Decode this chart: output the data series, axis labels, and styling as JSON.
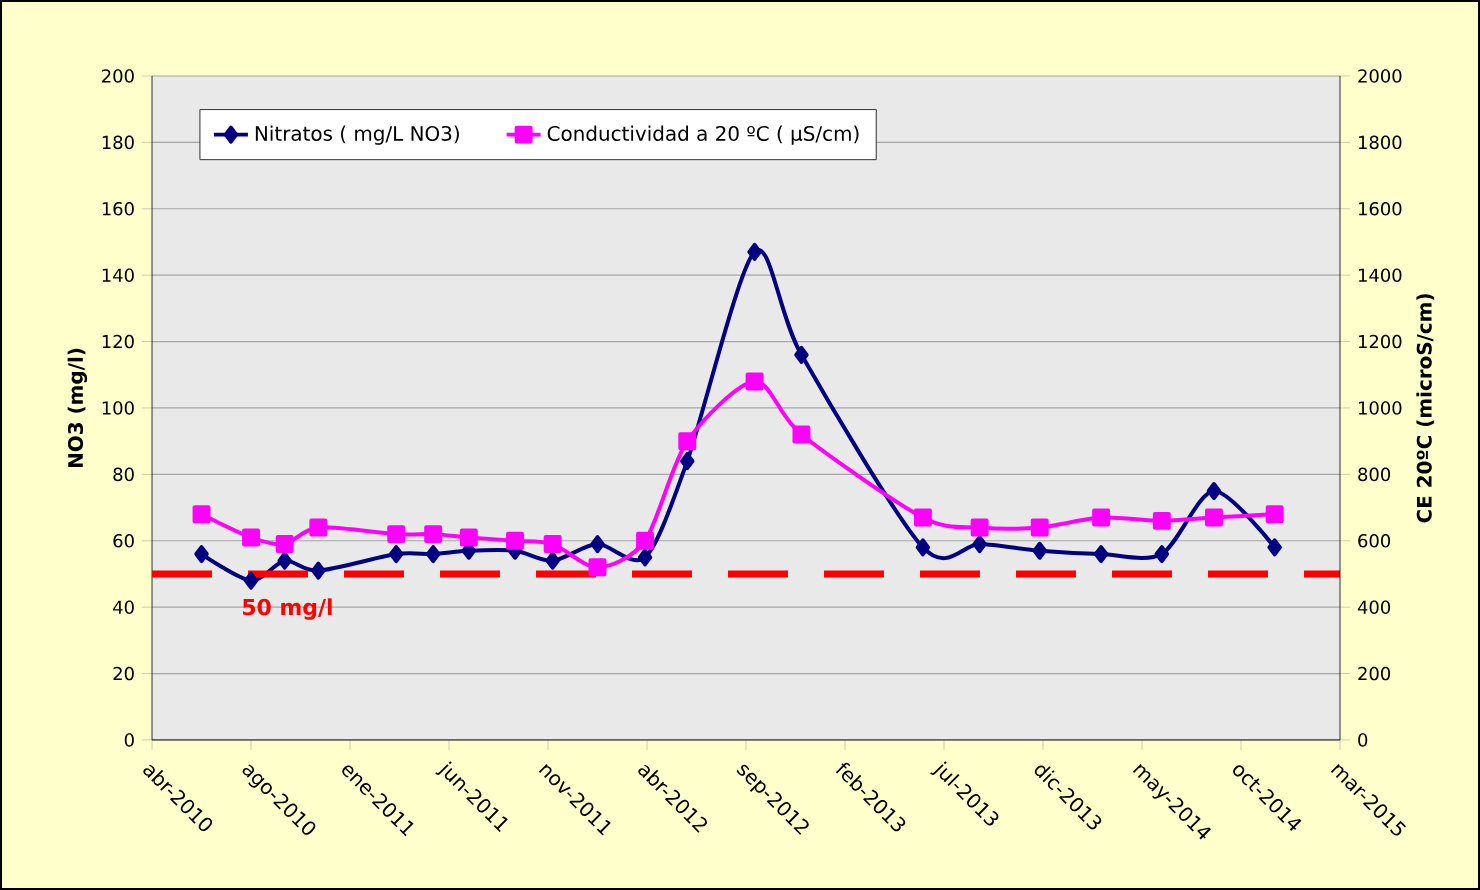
{
  "chart_data": {
    "type": "line",
    "ylabel": "NO3 (mg/l)",
    "y2label": "CE 20ºC (microS/cm)",
    "x": [
      "2010-06-15",
      "2010-08-29",
      "2010-10-19",
      "2010-12-09",
      "2011-04-06",
      "2011-06-01",
      "2011-07-25",
      "2011-10-03",
      "2011-11-29",
      "2012-02-05",
      "2012-04-17",
      "2012-06-20",
      "2012-09-30",
      "2012-12-10",
      "2013-06-12",
      "2013-09-06",
      "2013-12-06",
      "2014-03-09",
      "2014-06-09",
      "2014-08-27",
      "2014-11-27"
    ],
    "series": [
      {
        "name": "Nitratos ( mg/L NO3)",
        "color": "#000080",
        "marker": "diamond",
        "values": [
          56,
          48,
          54,
          51,
          56,
          56,
          57,
          57,
          54,
          59,
          55,
          84,
          147,
          116,
          58,
          59,
          57,
          56,
          56,
          75,
          58
        ]
      },
      {
        "name": "Conductividad a 20 ºC ( µS/cm)",
        "color": "#ff00ff",
        "marker": "square",
        "axis": "y2",
        "values": [
          680,
          610,
          590,
          640,
          620,
          620,
          610,
          600,
          590,
          520,
          600,
          900,
          1080,
          920,
          670,
          640,
          640,
          670,
          660,
          670,
          680
        ]
      }
    ],
    "xlim": [
      "2010-04-01",
      "2015-03-06"
    ],
    "xticks": [
      {
        "value": "2010-04-01",
        "label": "abr-2010"
      },
      {
        "value": "2010-08-29",
        "label": "ago-2010"
      },
      {
        "value": "2011-01-26",
        "label": "ene-2011"
      },
      {
        "value": "2011-06-25",
        "label": "jun-2011"
      },
      {
        "value": "2011-11-22",
        "label": "nov-2011"
      },
      {
        "value": "2012-04-20",
        "label": "abr-2012"
      },
      {
        "value": "2012-09-17",
        "label": "sep-2012"
      },
      {
        "value": "2013-02-14",
        "label": "feb-2013"
      },
      {
        "value": "2013-07-14",
        "label": "jul-2013"
      },
      {
        "value": "2013-12-11",
        "label": "dic-2013"
      },
      {
        "value": "2014-05-10",
        "label": "may-2014"
      },
      {
        "value": "2014-10-07",
        "label": "oct-2014"
      },
      {
        "value": "2015-03-06",
        "label": "mar-2015"
      }
    ],
    "ylim": [
      0,
      200
    ],
    "yticks": [
      0,
      20,
      40,
      60,
      80,
      100,
      120,
      140,
      160,
      180,
      200
    ],
    "y2lim": [
      0,
      2000
    ],
    "y2ticks": [
      0,
      200,
      400,
      600,
      800,
      1000,
      1200,
      1400,
      1600,
      1800,
      2000
    ],
    "ref_lines": [
      {
        "axis": "y",
        "value": 50,
        "label": "50 mg/l",
        "color": "#ff0000",
        "line_style": "dashed"
      }
    ],
    "grid": "y",
    "legend": "top left",
    "line_style": "solid"
  }
}
